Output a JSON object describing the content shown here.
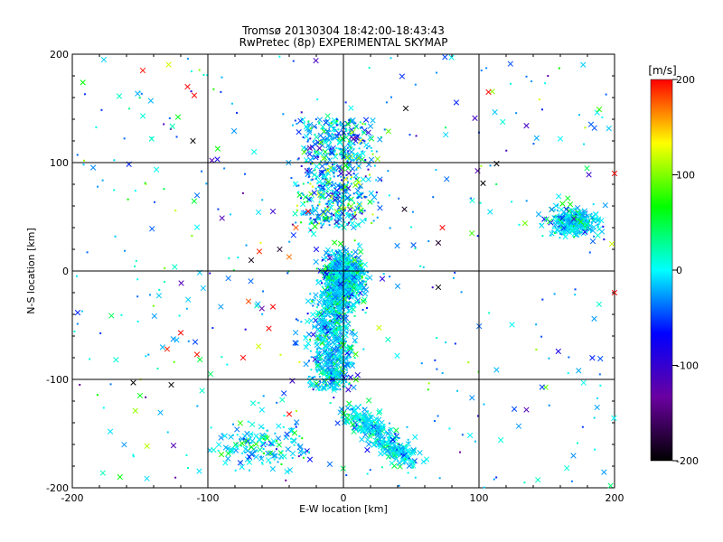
{
  "chart_data": {
    "type": "scatter",
    "title": "Tromsø 20130304 18:42:00-18:43:43",
    "subtitle": "RwPretec (8p) EXPERIMENTAL SKYMAP",
    "xlabel": "E-W location [km]",
    "ylabel": "N-S location [km]",
    "xlim": [
      -200,
      200
    ],
    "ylim": [
      -200,
      200
    ],
    "xticks": [
      -200,
      -100,
      0,
      100,
      200
    ],
    "yticks": [
      -200,
      -100,
      0,
      100,
      200
    ],
    "grid": true,
    "colorbar": {
      "label": "[m/s]",
      "range": [
        -200,
        200
      ],
      "ticks": [
        200,
        100,
        0,
        -100,
        -200
      ],
      "colors": [
        "#000000",
        "#6a00a0",
        "#0000ff",
        "#00ffff",
        "#00ff00",
        "#ffff00",
        "#ff0000"
      ]
    },
    "legend": "",
    "series": [
      {
        "markers": "cross (large) and dot (small)",
        "clusters": [
          {
            "region": "central vertical band",
            "x_range": [
              -30,
              35
            ],
            "y_range": [
              -200,
              140
            ]
          },
          {
            "region": "east cluster",
            "x_range": [
              140,
              200
            ],
            "y_range": [
              25,
              70
            ]
          },
          {
            "region": "scattered background",
            "x_range": [
              -200,
              200
            ],
            "y_range": [
              -200,
              200
            ]
          }
        ],
        "points": [
          {
            "x": -148,
            "y": 185,
            "v": 195
          },
          {
            "x": -111,
            "y": 120,
            "v": -200
          },
          {
            "x": -115,
            "y": 170,
            "v": 200
          },
          {
            "x": -110,
            "y": 162,
            "v": 205
          },
          {
            "x": -122,
            "y": 142,
            "v": 60
          },
          {
            "x": -97,
            "y": 102,
            "v": -120
          },
          {
            "x": -93,
            "y": 103,
            "v": -80
          },
          {
            "x": -35,
            "y": 40,
            "v": 180
          },
          {
            "x": -26,
            "y": 55,
            "v": 200
          },
          {
            "x": -62,
            "y": 18,
            "v": 190
          },
          {
            "x": -68,
            "y": 10,
            "v": -190
          },
          {
            "x": -52,
            "y": 55,
            "v": -100
          },
          {
            "x": -5,
            "y": 45,
            "v": -110
          },
          {
            "x": 8,
            "y": 50,
            "v": -120
          },
          {
            "x": -47,
            "y": 20,
            "v": -180
          },
          {
            "x": -40,
            "y": 13,
            "v": 170
          },
          {
            "x": -20,
            "y": 20,
            "v": -70
          },
          {
            "x": -10,
            "y": 12,
            "v": -120
          },
          {
            "x": 46,
            "y": 150,
            "v": -200
          },
          {
            "x": 45,
            "y": 57,
            "v": -190
          },
          {
            "x": 70,
            "y": 26,
            "v": -180
          },
          {
            "x": 73,
            "y": 40,
            "v": 200
          },
          {
            "x": 70,
            "y": -15,
            "v": -200
          },
          {
            "x": 103,
            "y": 81,
            "v": -200
          },
          {
            "x": 97,
            "y": 141,
            "v": -110
          },
          {
            "x": 107,
            "y": 165,
            "v": 200
          },
          {
            "x": 135,
            "y": 134,
            "v": -110
          },
          {
            "x": 113,
            "y": 99,
            "v": -200
          },
          {
            "x": 160,
            "y": 122,
            "v": 0
          },
          {
            "x": 95,
            "y": 65,
            "v": 10
          },
          {
            "x": -55,
            "y": -53,
            "v": 200
          },
          {
            "x": -130,
            "y": -72,
            "v": 190
          },
          {
            "x": -120,
            "y": -57,
            "v": 200
          },
          {
            "x": -108,
            "y": -77,
            "v": 195
          },
          {
            "x": -74,
            "y": -80,
            "v": 200
          },
          {
            "x": -98,
            "y": -95,
            "v": 40
          },
          {
            "x": -155,
            "y": -103,
            "v": -200
          },
          {
            "x": -127,
            "y": -105,
            "v": -200
          },
          {
            "x": -150,
            "y": -115,
            "v": 60
          },
          {
            "x": -40,
            "y": -132,
            "v": 200
          },
          {
            "x": 135,
            "y": -128,
            "v": -120
          },
          {
            "x": -52,
            "y": -33,
            "v": 200
          },
          {
            "x": -70,
            "y": -28,
            "v": 180
          },
          {
            "x": 170,
            "y": 48,
            "v": -110
          },
          {
            "x": 198,
            "y": 25,
            "v": 120
          },
          {
            "x": 200,
            "y": 90,
            "v": 200
          },
          {
            "x": 200,
            "y": -20,
            "v": 200
          }
        ]
      }
    ]
  }
}
